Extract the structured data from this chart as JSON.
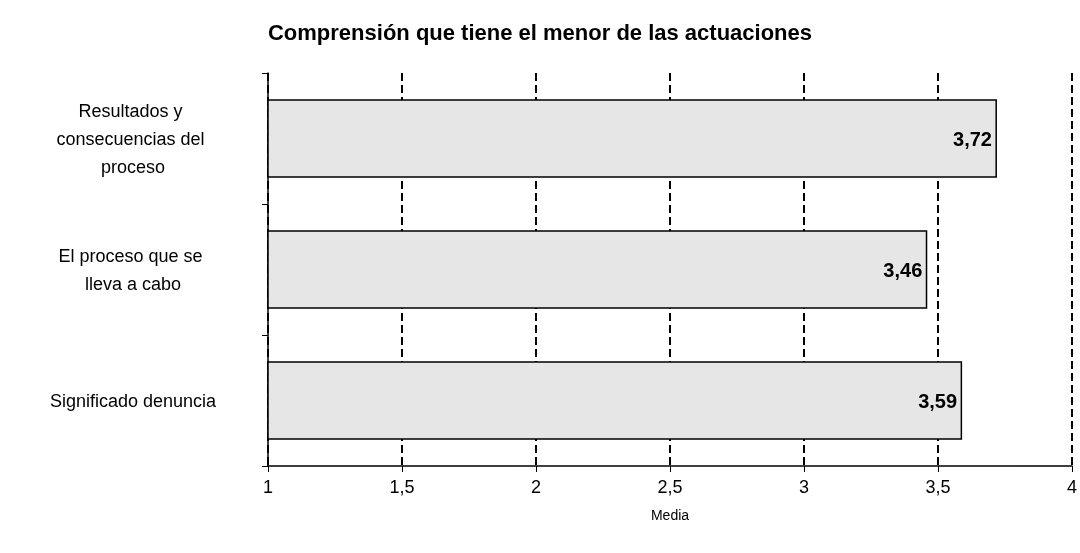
{
  "chart_data": {
    "type": "bar",
    "orientation": "horizontal",
    "title": "Comprensión que tiene el menor de las actuaciones",
    "xlabel": "Media",
    "categories": [
      "Resultados y consecuencias del proceso",
      "El proceso que se lleva a cabo",
      "Significado denuncia"
    ],
    "values": [
      3.72,
      3.46,
      3.59
    ],
    "color": "#e6e6e6",
    "value_labels": [
      "3,72",
      "3,46",
      "3,59"
    ],
    "xlim": [
      1,
      4
    ],
    "xticks": [
      1,
      {
        "value": 1.5,
        "label": "1,5"
      },
      2,
      {
        "value": 2.5,
        "label": "2,5"
      },
      3,
      {
        "value": 3.5,
        "label": "3,5"
      },
      4
    ],
    "grid": "x"
  }
}
